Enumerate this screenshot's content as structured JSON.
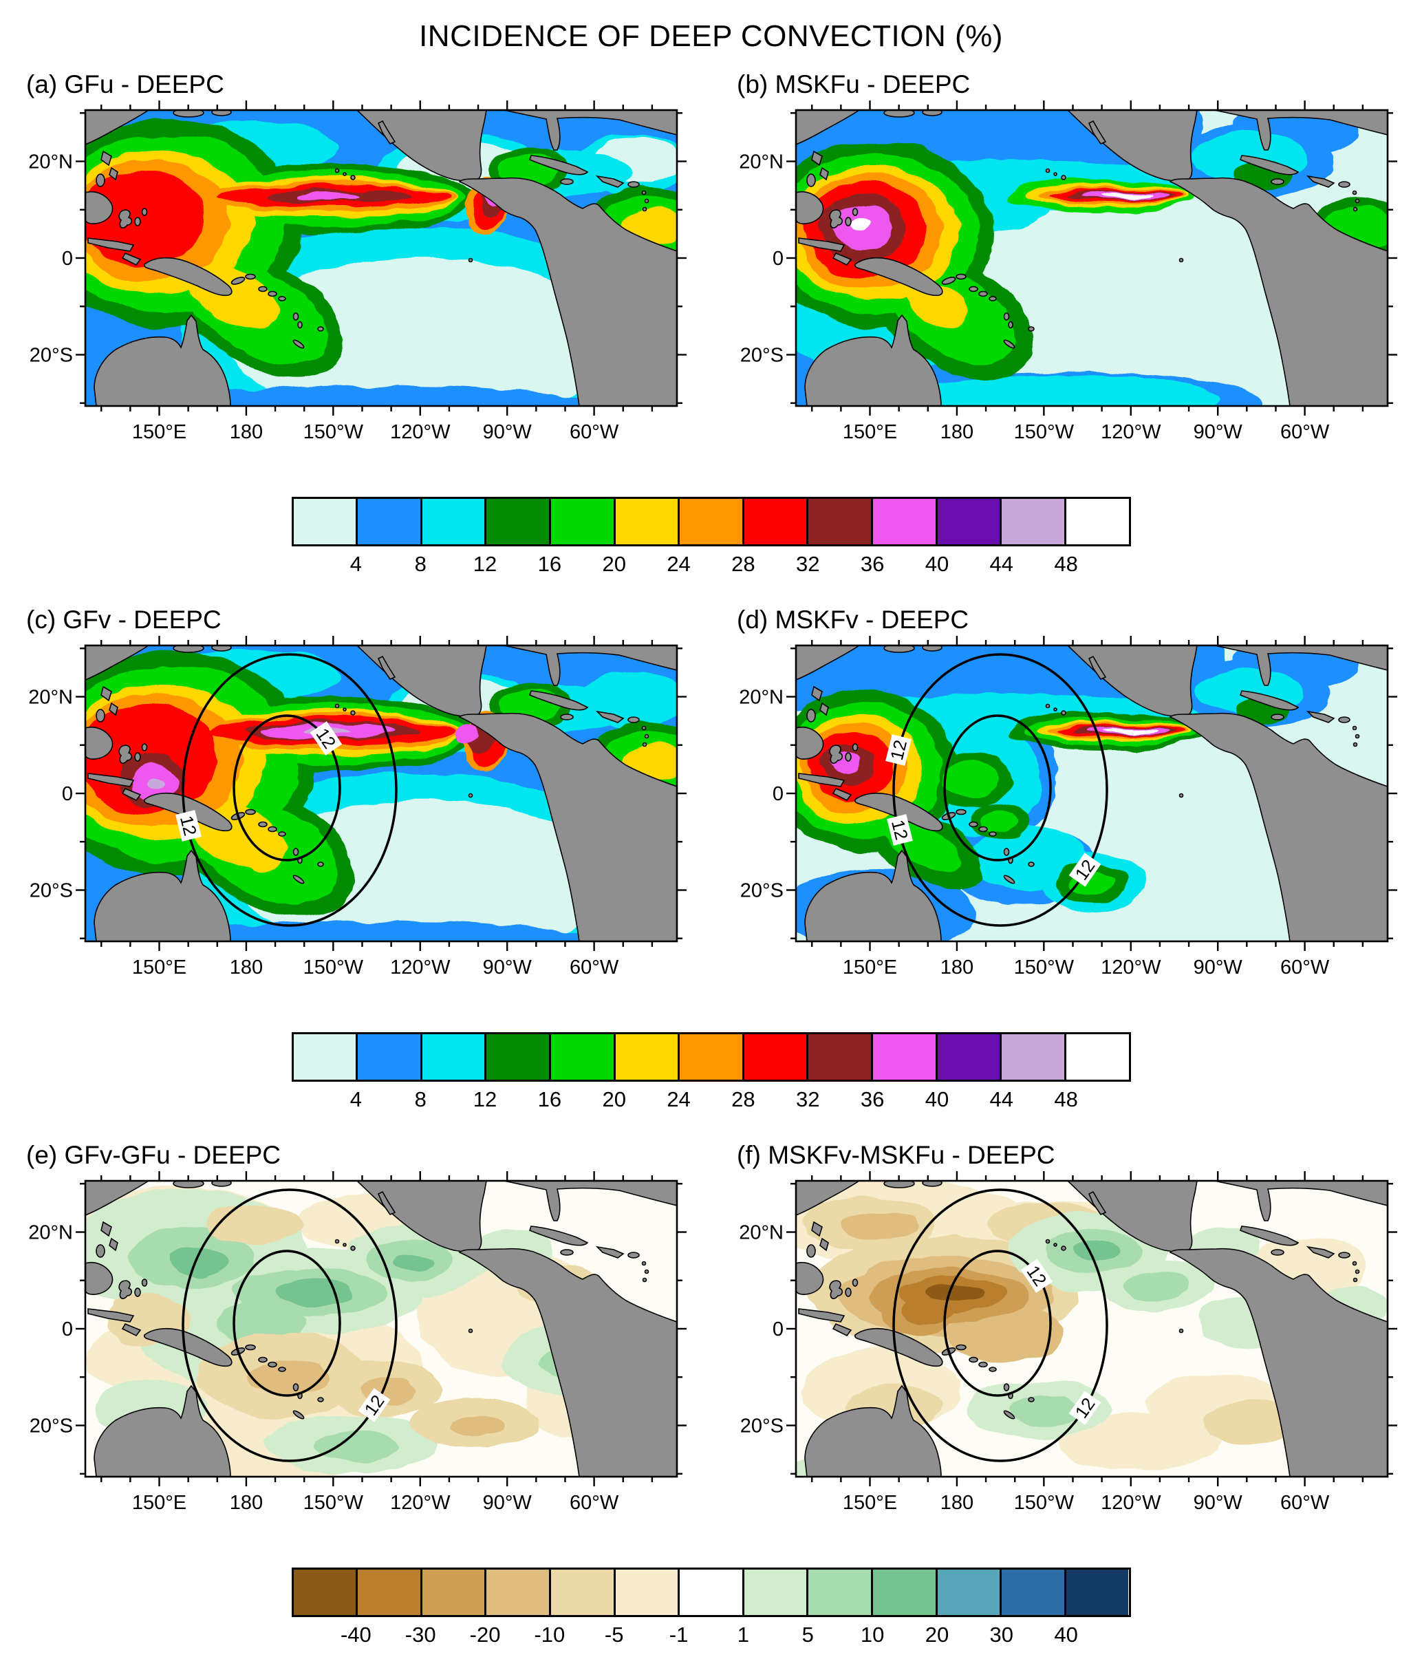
{
  "title": "INCIDENCE OF DEEP CONVECTION (%)",
  "panels": [
    {
      "id": "a",
      "label": "(a) GFu - DEEPC"
    },
    {
      "id": "b",
      "label": "(b) MSKFu - DEEPC"
    },
    {
      "id": "c",
      "label": "(c) GFv - DEEPC"
    },
    {
      "id": "d",
      "label": "(d) MSKFv - DEEPC"
    },
    {
      "id": "e",
      "label": "(e) GFv-GFu - DEEPC"
    },
    {
      "id": "f",
      "label": "(f) MSKFv-MSKFu - DEEPC"
    }
  ],
  "axes": {
    "lon_ticks": [
      "150°E",
      "180",
      "150°W",
      "120°W",
      "90°W",
      "60°W"
    ],
    "lat_ticks": [
      "20°N",
      "0",
      "20°S"
    ]
  },
  "contour_label": "12",
  "colorbar_incidence": {
    "tick_labels": [
      "4",
      "8",
      "12",
      "16",
      "20",
      "24",
      "28",
      "32",
      "36",
      "40",
      "44",
      "48"
    ],
    "colors": [
      "#d9f6f0",
      "#1e90ff",
      "#00e6ee",
      "#008b00",
      "#00d800",
      "#ffd800",
      "#ff9800",
      "#fd0000",
      "#8b2323",
      "#ee58ee",
      "#6a0dad",
      "#c9a8dc",
      "#ffffff"
    ]
  },
  "colorbar_difference": {
    "tick_labels": [
      "-40",
      "-30",
      "-20",
      "-10",
      "-5",
      "-1",
      "1",
      "5",
      "10",
      "20",
      "30",
      "40"
    ],
    "colors": [
      "#8c5a17",
      "#b97f2e",
      "#cd9e53",
      "#dfbd7f",
      "#ecd9a8",
      "#f7eccb",
      "#ffffff",
      "#d2edcd",
      "#a8dcae",
      "#74c391",
      "#57a7b8",
      "#2d6ea6",
      "#163a66"
    ]
  },
  "chart_data": {
    "type": "heatmap",
    "title": "INCIDENCE OF DEEP CONVECTION (%)",
    "n_panels": 6,
    "geographic_domain": {
      "region": "Tropical Pacific and Atlantic oceans",
      "lon_ticks": [
        "150°E",
        "180",
        "150°W",
        "120°W",
        "90°W",
        "60°W"
      ],
      "lat_ticks": [
        "20°N",
        "0",
        "20°S"
      ]
    },
    "color_scale_incidence": {
      "units": "%",
      "boundaries": [
        4,
        8,
        12,
        16,
        20,
        24,
        28,
        32,
        36,
        40,
        44,
        48
      ],
      "colors": [
        "#d9f6f0",
        "#1e90ff",
        "#00e6ee",
        "#008b00",
        "#00d800",
        "#ffd800",
        "#ff9800",
        "#fd0000",
        "#8b2323",
        "#ee58ee",
        "#6a0dad",
        "#c9a8dc",
        "#ffffff"
      ]
    },
    "color_scale_difference": {
      "units": "%",
      "boundaries": [
        -40,
        -30,
        -20,
        -10,
        -5,
        -1,
        1,
        5,
        10,
        20,
        30,
        40
      ],
      "colors": [
        "#8c5a17",
        "#b97f2e",
        "#cd9e53",
        "#dfbd7f",
        "#ecd9a8",
        "#f7eccb",
        "#ffffff",
        "#d2edcd",
        "#a8dcae",
        "#74c391",
        "#57a7b8",
        "#2d6ea6",
        "#163a66"
      ]
    },
    "panels": [
      {
        "id": "a",
        "title": "(a) GFu - DEEPC",
        "color_scale": "incidence",
        "features": "Broad ITCZ band of 24-36% incidence across the equatorial Pacific reaching the Central American coast; maximum over the west Pacific warm pool; SPCZ extending southeast; low values (<8%) in the southeast Pacific."
      },
      {
        "id": "b",
        "title": "(b) MSKFu - DEEPC",
        "color_scale": "incidence",
        "features": "Intense west Pacific maximum exceeding 36-40%; narrow east Pacific ITCZ with core values above 48% (white); widespread values below 4% over the central/southeast Pacific."
      },
      {
        "id": "c",
        "title": "(c) GFv - DEEPC",
        "color_scale": "incidence",
        "contour_label": "12",
        "features": "Similar to (a) but stronger: 36-48% (magenta/lavender) band in the central and east Pacific ITCZ and over the far west Pacific; two concentric elliptical contours labeled 12 over the central Pacific."
      },
      {
        "id": "d",
        "title": "(d) MSKFv - DEEPC",
        "color_scale": "incidence",
        "contour_label": "12",
        "features": "Suppressed central Pacific (4-12%), intense isolated west Pacific maximum, and a narrow east Pacific ITCZ exceeding 48%; elliptical contours labeled 12 over the central Pacific."
      },
      {
        "id": "e",
        "title": "(e) GFv-GFu - DEEPC",
        "color_scale": "difference",
        "contour_label": "12",
        "features": "Differences mostly within ±10%: weak positive (green) patches along the equator and northwest, weak negative (tan) patches in the south-central Pacific; elliptical contours labeled 12."
      },
      {
        "id": "f",
        "title": "(f) MSKFv-MSKFu - DEEPC",
        "color_scale": "difference",
        "contour_label": "12",
        "features": "Negative differences down to about -40% (brown) along the equatorial west-central Pacific; positive (green) patches to the northeast and south; elliptical contours labeled 12."
      }
    ]
  }
}
